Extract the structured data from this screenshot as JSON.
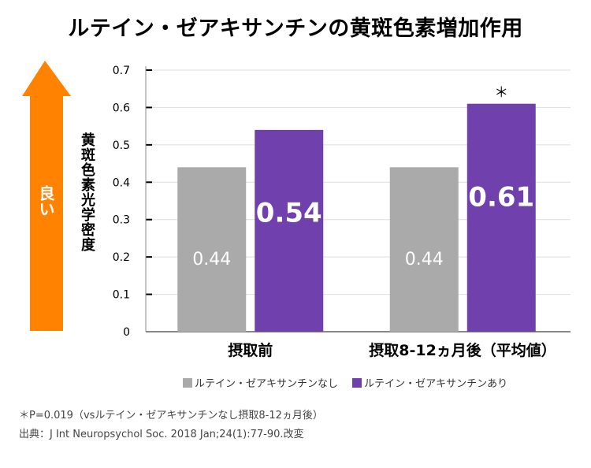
{
  "title": "ルテイン・ゼアキサンチンの黄斑色素増加作用",
  "indicator": {
    "label": "良い",
    "direction": "up",
    "color": "#FF8200"
  },
  "colors": {
    "without": "#AAAAAA",
    "with": "#7040AD",
    "bar_label": "#FFFFFF",
    "grid": "#DDDDDD",
    "axis": "#888888"
  },
  "chart_data": {
    "type": "bar",
    "title": "ルテイン・ゼアキサンチンの黄斑色素増加作用",
    "xlabel": "",
    "ylabel": "黄斑色素光学密度",
    "categories": [
      "摂取前",
      "摂取8-12ヵ月後（平均値）"
    ],
    "series": [
      {
        "name": "ルテイン・ゼアキサンチンなし",
        "values": [
          0.44,
          0.44
        ],
        "labels": [
          "0.44",
          "0.44"
        ]
      },
      {
        "name": "ルテイン・ゼアキサンチンあり",
        "values": [
          0.54,
          0.61
        ],
        "labels": [
          "0.54",
          "0.61"
        ]
      }
    ],
    "ylim": [
      0,
      0.7
    ],
    "yticks": [
      "0",
      "0.1",
      "0.2",
      "0.3",
      "0.4",
      "0.5",
      "0.6",
      "0.7"
    ],
    "grid": true,
    "legend_position": "bottom",
    "annotations": [
      {
        "text": "＊",
        "category": 1,
        "series": 1
      }
    ]
  },
  "footnotes": [
    "＊P=0.019（vsルテイン・ゼアキサンチンなし摂取8-12ヵ月後）",
    "出典：J Int Neuropsychol Soc. 2018 Jan;24(1):77-90.改変"
  ]
}
